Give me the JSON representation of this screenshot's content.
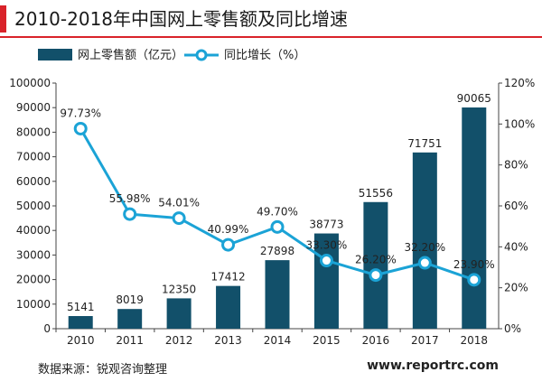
{
  "title": "2010-2018年中国网上零售额及同比增速",
  "source": "数据来源：锐观咨询整理",
  "website": "www.reportrc.com",
  "colors": {
    "accent": "#d9232a",
    "bar": "#12506a",
    "line": "#1ba3d6"
  },
  "chart_data": {
    "type": "bar",
    "categories": [
      "2010",
      "2011",
      "2012",
      "2013",
      "2014",
      "2015",
      "2016",
      "2017",
      "2018"
    ],
    "series": [
      {
        "name": "网上零售额（亿元）",
        "type": "bar",
        "axis": "left",
        "values": [
          5141,
          8019,
          12350,
          17412,
          27898,
          38773,
          51556,
          71751,
          90065
        ],
        "labels": [
          "5141",
          "8019",
          "12350",
          "17412",
          "27898",
          "38773",
          "51556",
          "71751",
          "90065"
        ]
      },
      {
        "name": "同比增长（%）",
        "type": "line",
        "axis": "right",
        "values": [
          97.73,
          55.98,
          54.01,
          40.99,
          49.7,
          33.3,
          26.2,
          32.2,
          23.9
        ],
        "labels": [
          "97.73%",
          "55.98%",
          "54.01%",
          "40.99%",
          "49.70%",
          "33.30%",
          "26.20%",
          "32.20%",
          "23.90%"
        ]
      }
    ],
    "y_left": {
      "min": 0,
      "max": 100000,
      "ticks": [
        "0",
        "10000",
        "20000",
        "30000",
        "40000",
        "50000",
        "60000",
        "70000",
        "80000",
        "90000",
        "100000"
      ]
    },
    "y_right": {
      "min": 0,
      "max": 120,
      "ticks": [
        "0%",
        "20%",
        "40%",
        "60%",
        "80%",
        "100%",
        "120%"
      ]
    },
    "legend": "top-left",
    "grid": false
  }
}
